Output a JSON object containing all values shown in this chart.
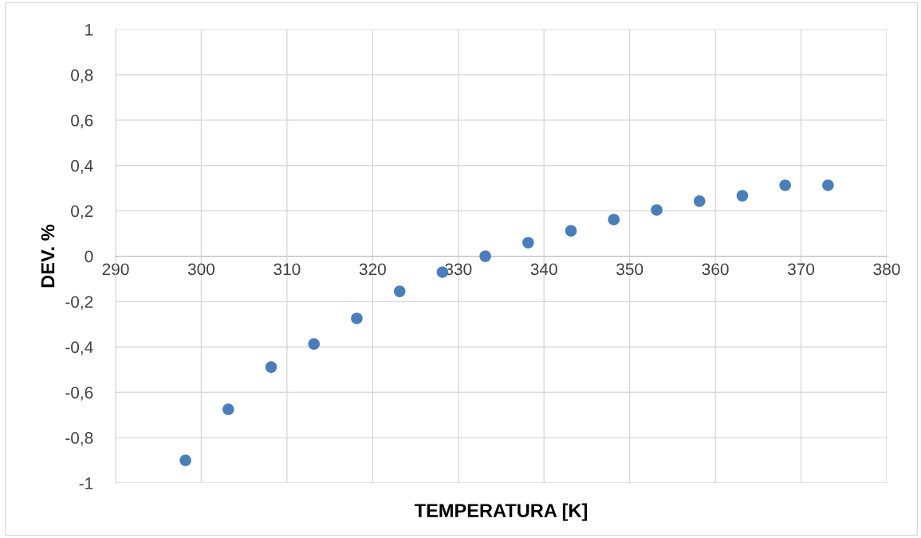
{
  "chart_data": {
    "type": "scatter",
    "xlabel": "TEMPERATURA [K]",
    "ylabel": "DEV. %",
    "x": [
      298.15,
      303.15,
      308.15,
      313.15,
      318.15,
      323.15,
      328.15,
      333.15,
      338.15,
      343.15,
      348.15,
      353.15,
      358.15,
      363.15,
      368.15,
      373.15
    ],
    "series": [
      {
        "color": "#4a7ebb",
        "values": [
          -0.9,
          -0.675,
          -0.489,
          -0.387,
          -0.274,
          -0.155,
          -0.07,
          0.0,
          0.06,
          0.112,
          0.162,
          0.204,
          0.243,
          0.267,
          0.313,
          0.313
        ]
      }
    ],
    "xlim": [
      290,
      380
    ],
    "xticks": [
      290,
      300,
      310,
      320,
      330,
      340,
      350,
      360,
      370,
      380
    ],
    "ylim": [
      -1,
      1
    ],
    "yticks": [
      {
        "value": -1,
        "label": "-1"
      },
      {
        "value": -0.8,
        "label": "-0,8"
      },
      {
        "value": -0.6,
        "label": "-0,6"
      },
      {
        "value": -0.4,
        "label": "-0,4"
      },
      {
        "value": -0.2,
        "label": "-0,2"
      },
      0,
      {
        "value": 0.2,
        "label": "0,2"
      },
      {
        "value": 0.4,
        "label": "0,4"
      },
      {
        "value": 0.6,
        "label": "0,6"
      },
      {
        "value": 0.8,
        "label": "0,8"
      },
      1
    ],
    "grid": true,
    "marker": "circle"
  }
}
